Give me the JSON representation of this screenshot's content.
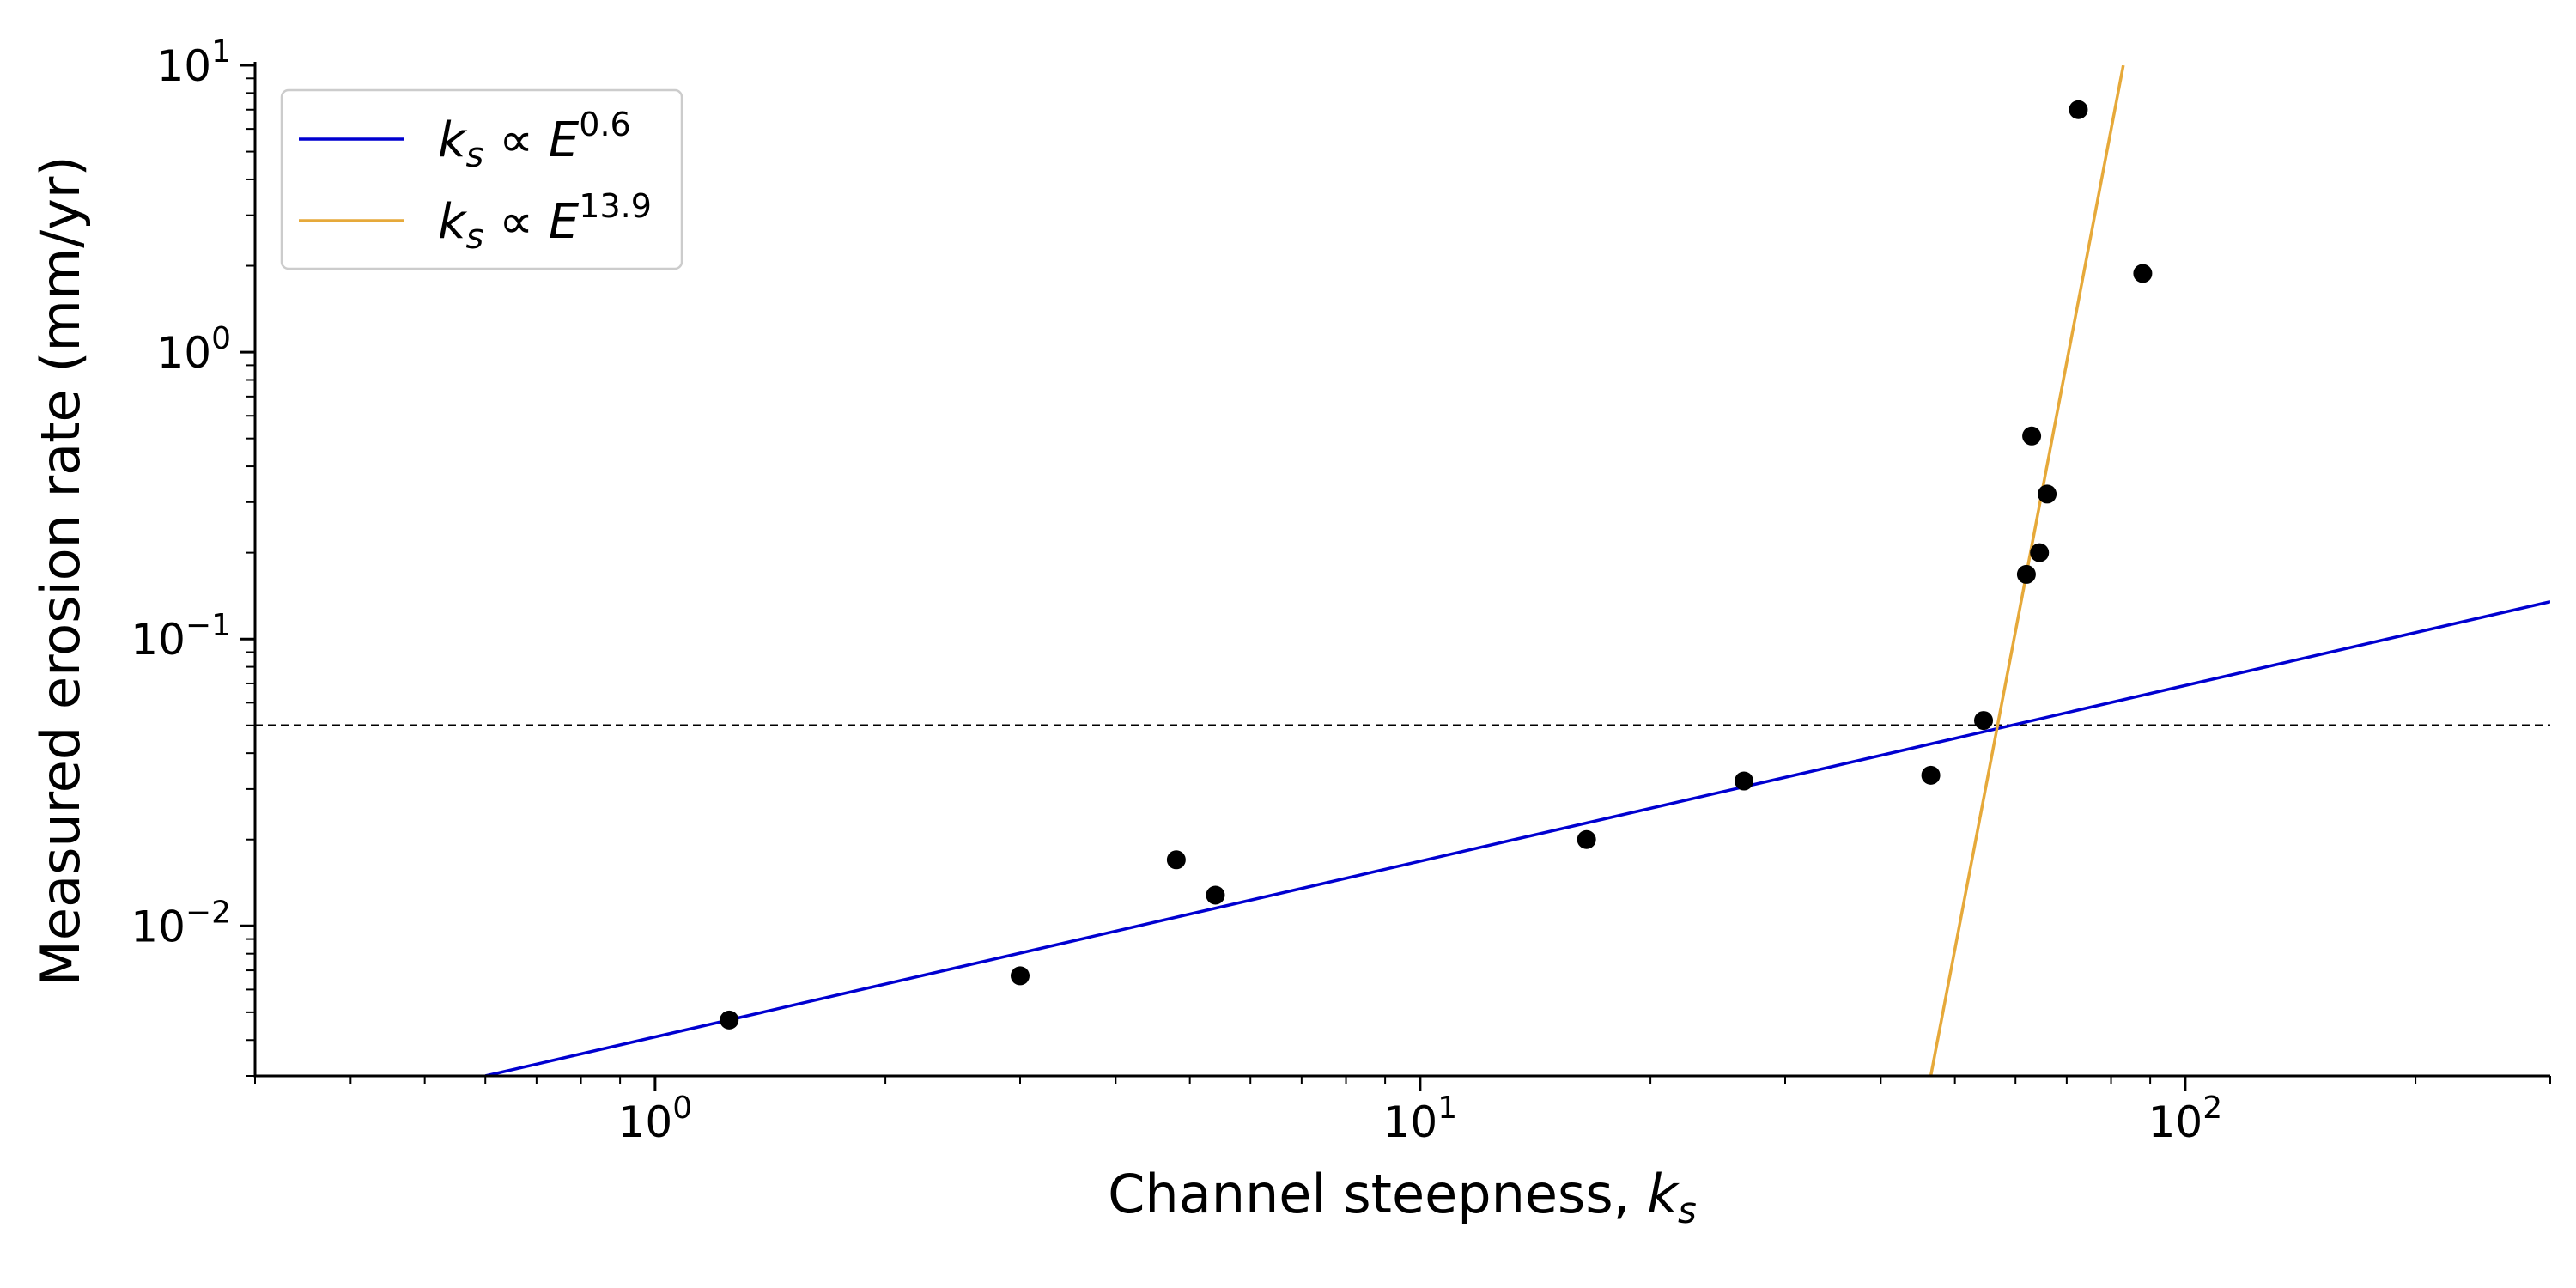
{
  "chart_data": {
    "type": "scatter",
    "xlabel": {
      "text": "Channel steepness, ",
      "symbol": "k",
      "subscript": "s"
    },
    "ylabel": "Measured erosion rate (mm/yr)",
    "x_scale": "log",
    "y_scale": "log",
    "xlim": [
      0.3,
      300
    ],
    "ylim": [
      0.003,
      10
    ],
    "x_ticks": [
      {
        "value": 1,
        "base": "10",
        "exp": "0"
      },
      {
        "value": 10,
        "base": "10",
        "exp": "1"
      },
      {
        "value": 100,
        "base": "10",
        "exp": "2"
      }
    ],
    "y_ticks": [
      {
        "value": 0.01,
        "base": "10",
        "exp": "−2"
      },
      {
        "value": 0.1,
        "base": "10",
        "exp": "−1"
      },
      {
        "value": 1,
        "base": "10",
        "exp": "0"
      },
      {
        "value": 10,
        "base": "10",
        "exp": "1"
      }
    ],
    "grid": false,
    "legend_position": "top-left",
    "points": [
      {
        "x": 1.25,
        "y": 0.0047
      },
      {
        "x": 3.0,
        "y": 0.0067
      },
      {
        "x": 4.8,
        "y": 0.017
      },
      {
        "x": 5.4,
        "y": 0.0128
      },
      {
        "x": 16.5,
        "y": 0.02
      },
      {
        "x": 26.5,
        "y": 0.032
      },
      {
        "x": 46.5,
        "y": 0.0335
      },
      {
        "x": 54.5,
        "y": 0.052
      },
      {
        "x": 62.0,
        "y": 0.168
      },
      {
        "x": 63.0,
        "y": 0.51
      },
      {
        "x": 64.5,
        "y": 0.2
      },
      {
        "x": 66.0,
        "y": 0.32
      },
      {
        "x": 72.5,
        "y": 7.0
      },
      {
        "x": 88.0,
        "y": 1.88
      }
    ],
    "point_color": "#000000",
    "reference_line": {
      "y": 0.05,
      "style": "dashed",
      "color": "#000000"
    },
    "series": [
      {
        "name": {
          "k": "k",
          "sub": "s",
          "rel": " ∝ ",
          "E": "E",
          "exp": "0.6"
        },
        "color": "#0000d0",
        "x": [
          0.6,
          300
        ],
        "y": [
          0.003,
          0.135
        ]
      },
      {
        "name": {
          "k": "k",
          "sub": "s",
          "rel": " ∝ ",
          "E": "E",
          "exp": "13.9"
        },
        "color": "#e6a93a",
        "x": [
          46.5,
          83.0
        ],
        "y": [
          0.003,
          10
        ]
      }
    ]
  }
}
